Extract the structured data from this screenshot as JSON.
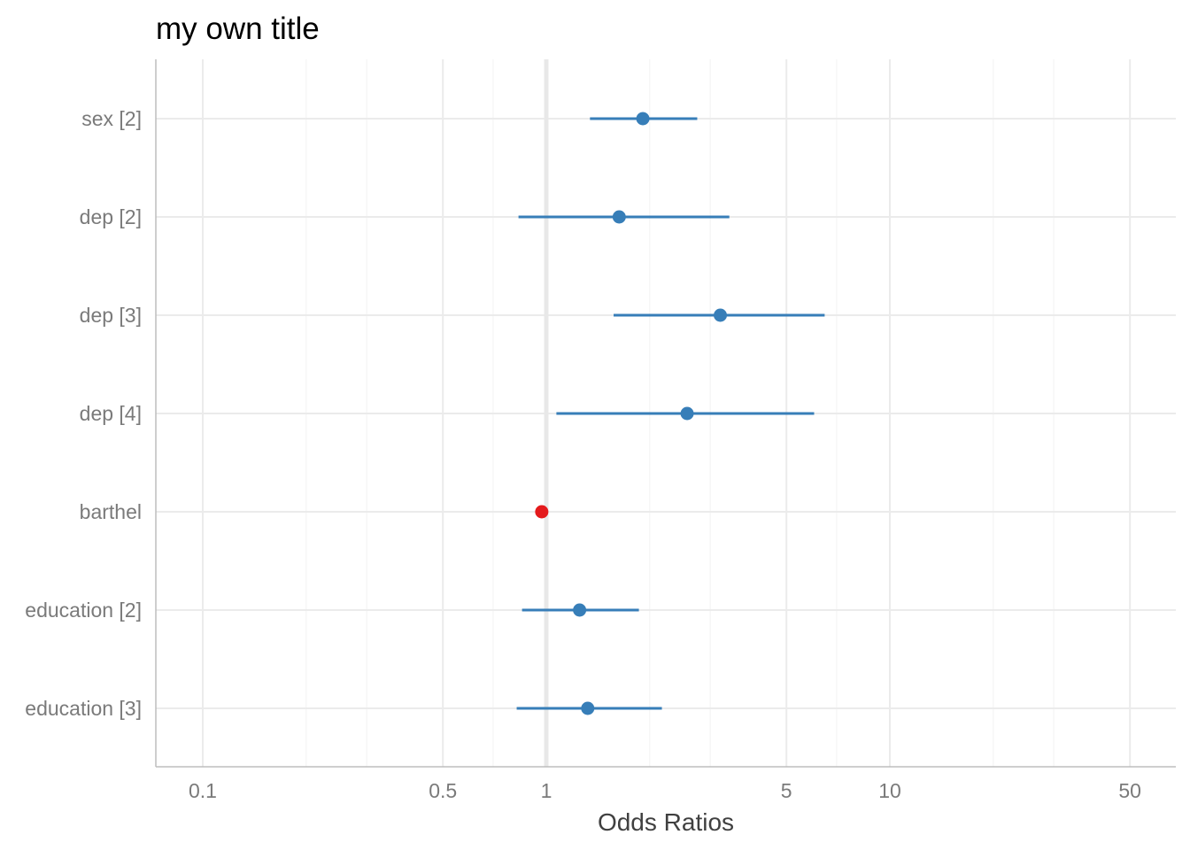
{
  "chart_data": {
    "type": "forest",
    "title": "my own title",
    "xlabel": "Odds Ratios",
    "ylabel": "",
    "x_scale": "log10",
    "xlim": [
      0.075,
      62
    ],
    "x_ticks": [
      0.1,
      0.5,
      1,
      5,
      10,
      50
    ],
    "x_tick_labels": [
      "0.1",
      "0.5",
      "1",
      "5",
      "10",
      "50"
    ],
    "x_minor_ticks": [
      0.2,
      0.3,
      0.7,
      2,
      3,
      7,
      20,
      30,
      70
    ],
    "reference_line": 1,
    "grid": true,
    "colors": {
      "positive": "#377eb8",
      "negative": "#e41a1c",
      "grid": "#ebebeb",
      "axis": "#bdbdbd"
    },
    "terms": [
      {
        "label": "sex [2]",
        "estimate": 1.91,
        "conf_low": 1.34,
        "conf_high": 2.75,
        "color": "positive"
      },
      {
        "label": "dep [2]",
        "estimate": 1.63,
        "conf_low": 0.83,
        "conf_high": 3.41,
        "color": "positive"
      },
      {
        "label": "dep [3]",
        "estimate": 3.21,
        "conf_low": 1.57,
        "conf_high": 6.46,
        "color": "positive"
      },
      {
        "label": "dep [4]",
        "estimate": 2.57,
        "conf_low": 1.07,
        "conf_high": 6.02,
        "color": "positive"
      },
      {
        "label": "barthel",
        "estimate": 0.97,
        "conf_low": 0.96,
        "conf_high": 0.98,
        "color": "negative"
      },
      {
        "label": "education [2]",
        "estimate": 1.25,
        "conf_low": 0.85,
        "conf_high": 1.86,
        "color": "positive"
      },
      {
        "label": "education [3]",
        "estimate": 1.32,
        "conf_low": 0.82,
        "conf_high": 2.17,
        "color": "positive"
      }
    ]
  }
}
